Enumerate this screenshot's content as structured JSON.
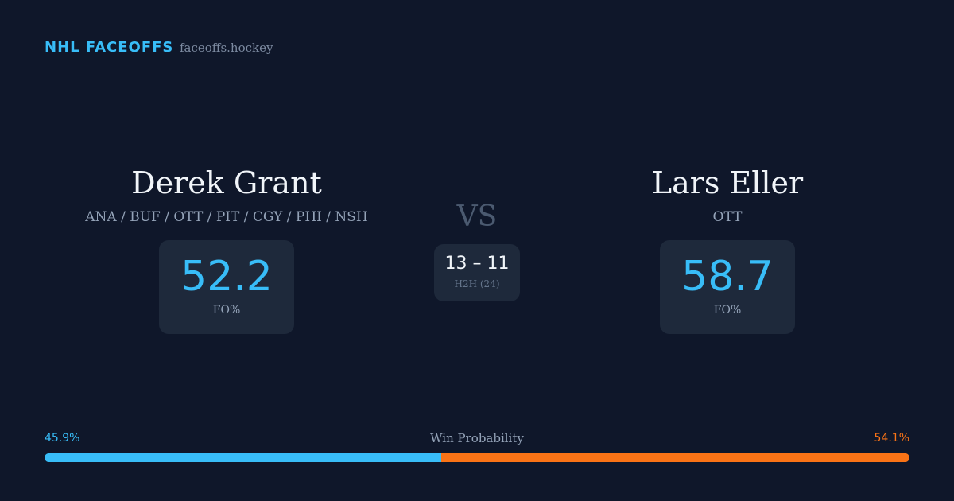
{
  "header": {
    "brand": "NHL FACEOFFS",
    "site": "faceoffs.hockey"
  },
  "players": [
    {
      "name": "Derek Grant",
      "teams": "ANA / BUF / OTT / PIT / CGY / PHI / NSH",
      "fo_pct": 52.2,
      "fo_label": "FO%"
    },
    {
      "name": "Lars Eller",
      "teams": "OTT",
      "fo_pct": 58.7,
      "fo_label": "FO%"
    }
  ],
  "versus": {
    "label": "VS",
    "score": "13 – 11",
    "caption": "H2H (24)"
  },
  "win_probability": {
    "label": "Win Probability",
    "left": {
      "value": 45.9,
      "label": "45.9%",
      "color": "#38bdf8"
    },
    "right": {
      "value": 54.1,
      "label": "54.1%",
      "color": "#f97316"
    }
  }
}
